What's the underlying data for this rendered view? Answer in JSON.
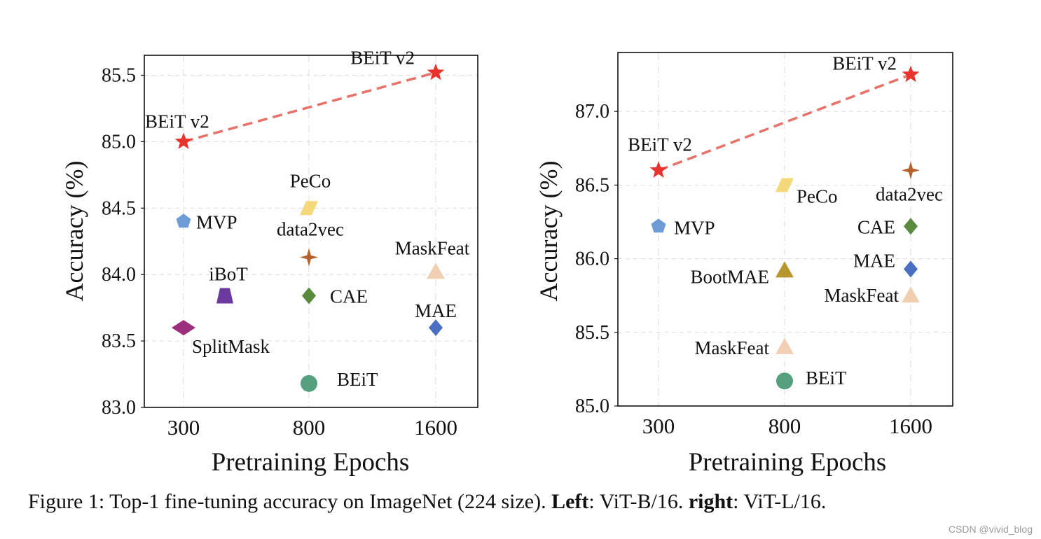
{
  "chart_data": [
    {
      "type": "scatter",
      "title": "",
      "xlabel": "Pretraining Epochs",
      "ylabel": "Accuracy (%)",
      "ylim": [
        83.0,
        85.65
      ],
      "yticks": [
        83.0,
        83.5,
        84.0,
        84.5,
        85.0,
        85.5
      ],
      "ytick_labels": [
        "83.0",
        "83.5",
        "84.0",
        "84.5",
        "85.0",
        "85.5"
      ],
      "xcategories": [
        "300",
        "800",
        "1600"
      ],
      "grid": true,
      "trend": {
        "from": [
          300,
          85.0
        ],
        "to": [
          1600,
          85.52
        ],
        "color": "#e8726a",
        "style": "dashed"
      },
      "points": [
        {
          "label": "BEiT v2",
          "epochs": 1600,
          "acc": 85.52,
          "marker": "star",
          "color": "#e8322b"
        },
        {
          "label": "BEiT v2",
          "epochs": 300,
          "acc": 85.0,
          "marker": "star",
          "color": "#e8322b"
        },
        {
          "label": "MVP",
          "epochs": 300,
          "acc": 84.4,
          "marker": "pentagon",
          "color": "#6c9bd6"
        },
        {
          "label": "PeCo",
          "epochs": 800,
          "acc": 84.5,
          "marker": "parallelogram",
          "color": "#f5d87a"
        },
        {
          "label": "data2vec",
          "epochs": 800,
          "acc": 84.13,
          "marker": "star4",
          "color": "#b5612e"
        },
        {
          "label": "MaskFeat",
          "epochs": 1600,
          "acc": 84.02,
          "marker": "triangle",
          "color": "#f0cfb2"
        },
        {
          "label": "iBoT",
          "epochs": 400,
          "acc": 83.84,
          "marker": "trapezoid",
          "color": "#6a3aa0"
        },
        {
          "label": "CAE",
          "epochs": 800,
          "acc": 83.84,
          "marker": "diamond",
          "color": "#5a8a3e"
        },
        {
          "label": "SplitMask",
          "epochs": 300,
          "acc": 83.6,
          "marker": "wide-diamond",
          "color": "#9b2f7e"
        },
        {
          "label": "MAE",
          "epochs": 1600,
          "acc": 83.6,
          "marker": "diamond",
          "color": "#4a6fc0"
        },
        {
          "label": "BEiT",
          "epochs": 800,
          "acc": 83.18,
          "marker": "circle",
          "color": "#54a07e"
        }
      ]
    },
    {
      "type": "scatter",
      "title": "",
      "xlabel": "Pretraining Epochs",
      "ylabel": "Accuracy (%)",
      "ylim": [
        85.0,
        87.4
      ],
      "yticks": [
        85.0,
        85.5,
        86.0,
        86.5,
        87.0
      ],
      "ytick_labels": [
        "85.0",
        "85.5",
        "86.0",
        "86.5",
        "87.0"
      ],
      "xcategories": [
        "300",
        "800",
        "1600"
      ],
      "grid": true,
      "trend": {
        "from": [
          300,
          86.6
        ],
        "to": [
          1600,
          87.25
        ],
        "color": "#e8726a",
        "style": "dashed"
      },
      "points": [
        {
          "label": "BEiT v2",
          "epochs": 1600,
          "acc": 87.25,
          "marker": "star",
          "color": "#e8322b"
        },
        {
          "label": "BEiT v2",
          "epochs": 300,
          "acc": 86.6,
          "marker": "star",
          "color": "#e8322b"
        },
        {
          "label": "PeCo",
          "epochs": 800,
          "acc": 86.5,
          "marker": "parallelogram",
          "color": "#f5d87a"
        },
        {
          "label": "data2vec",
          "epochs": 1600,
          "acc": 86.6,
          "marker": "star4",
          "color": "#b5612e"
        },
        {
          "label": "MVP",
          "epochs": 300,
          "acc": 86.22,
          "marker": "pentagon",
          "color": "#6c9bd6"
        },
        {
          "label": "CAE",
          "epochs": 1600,
          "acc": 86.22,
          "marker": "diamond",
          "color": "#5a8a3e"
        },
        {
          "label": "MAE",
          "epochs": 1600,
          "acc": 85.93,
          "marker": "diamond",
          "color": "#4a6fc0"
        },
        {
          "label": "BootMAE",
          "epochs": 800,
          "acc": 85.92,
          "marker": "triangle",
          "color": "#b8962e"
        },
        {
          "label": "MaskFeat",
          "epochs": 1600,
          "acc": 85.75,
          "marker": "triangle",
          "color": "#f0cfb2"
        },
        {
          "label": "MaskFeat",
          "epochs": 800,
          "acc": 85.4,
          "marker": "triangle",
          "color": "#f0cfb2"
        },
        {
          "label": "BEiT",
          "epochs": 800,
          "acc": 85.17,
          "marker": "circle",
          "color": "#54a07e"
        }
      ]
    }
  ],
  "caption": {
    "prefix": "Figure 1: Top-1 fine-tuning accuracy on ImageNet (224 size). ",
    "left_bold": "Left",
    "left_rest": ": ViT-B/16. ",
    "right_bold": "right",
    "right_rest": ": ViT-L/16."
  },
  "watermark": "CSDN @vivid_blog"
}
